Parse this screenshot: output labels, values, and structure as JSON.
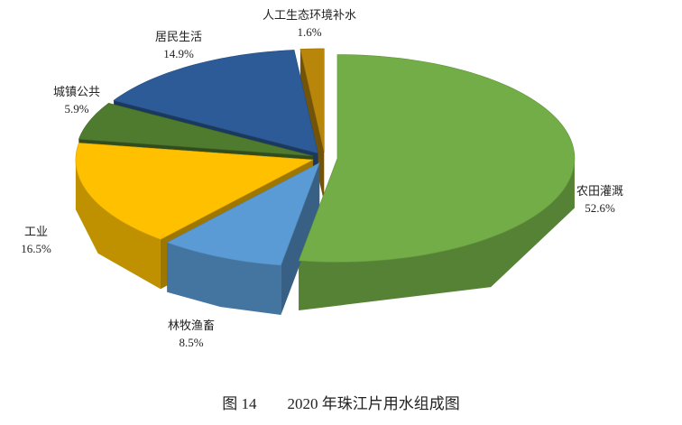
{
  "chart_data": {
    "type": "pie3d",
    "title": "图 14　　2020 年珠江片用水组成图",
    "categories": [
      "农田灌溉",
      "林牧渔畜",
      "工业",
      "城镇公共",
      "居民生活",
      "人工生态环境补水"
    ],
    "values": [
      52.6,
      8.5,
      16.5,
      5.9,
      14.9,
      1.6
    ],
    "value_labels": [
      "52.6%",
      "8.5%",
      "16.5%",
      "5.9%",
      "14.9%",
      "1.6%"
    ],
    "colors": [
      "#72ad47",
      "#5b9bd5",
      "#ffc000",
      "#4f7b2e",
      "#2c5b97",
      "#b8860b"
    ]
  }
}
